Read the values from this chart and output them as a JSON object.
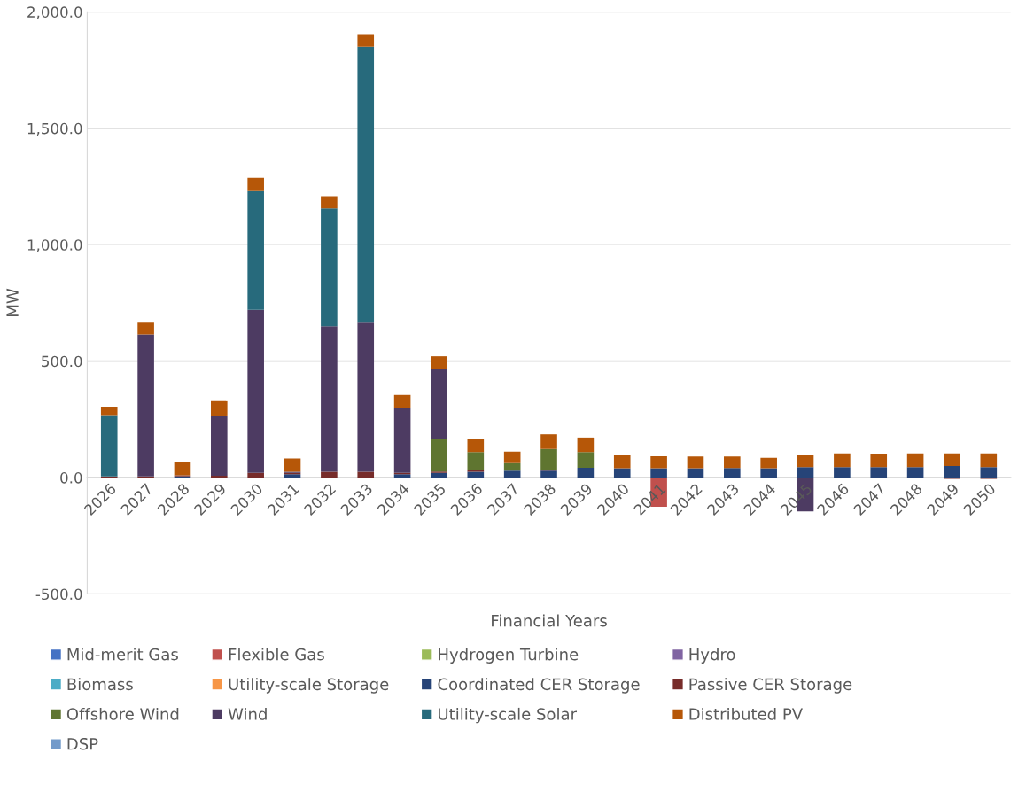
{
  "chart_data": {
    "type": "bar",
    "stacked": true,
    "xlabel": "Financial Years",
    "ylabel": "MW",
    "categories": [
      "2026",
      "2027",
      "2028",
      "2029",
      "2030",
      "2031",
      "2032",
      "2033",
      "2034",
      "2035",
      "2036",
      "2037",
      "2038",
      "2039",
      "2040",
      "2041",
      "2042",
      "2043",
      "2044",
      "2045",
      "2046",
      "2047",
      "2048",
      "2049",
      "2050"
    ],
    "ylim": [
      -500,
      2000
    ],
    "yticks": [
      {
        "value": -500,
        "label": "-500.0"
      },
      {
        "value": 0,
        "label": "0.0"
      },
      {
        "value": 500,
        "label": "500.0"
      },
      {
        "value": 1000,
        "label": "1,000.0"
      },
      {
        "value": 1500,
        "label": "1,500.0"
      },
      {
        "value": 2000,
        "label": "2,000.0"
      }
    ],
    "grid": "y",
    "legend": "bottom",
    "series": [
      {
        "name": "Mid-merit Gas",
        "color": "#4472c4",
        "values": [
          0,
          0,
          0,
          0,
          0,
          0,
          0,
          0,
          0,
          0,
          0,
          0,
          0,
          0,
          0,
          0,
          0,
          0,
          0,
          0,
          0,
          0,
          0,
          0,
          0
        ]
      },
      {
        "name": "Flexible Gas",
        "color": "#c0504d",
        "values": [
          0,
          0,
          0,
          0,
          0,
          0,
          0,
          0,
          0,
          0,
          0,
          0,
          0,
          0,
          0,
          -125,
          0,
          0,
          0,
          0,
          0,
          0,
          0,
          0,
          0
        ]
      },
      {
        "name": "Hydrogen Turbine",
        "color": "#9bbb59",
        "values": [
          0,
          0,
          0,
          0,
          0,
          0,
          0,
          0,
          0,
          0,
          0,
          0,
          0,
          0,
          0,
          0,
          0,
          0,
          0,
          0,
          0,
          0,
          0,
          0,
          0
        ]
      },
      {
        "name": "Hydro",
        "color": "#8064a2",
        "values": [
          0,
          0,
          0,
          0,
          0,
          0,
          0,
          0,
          0,
          0,
          0,
          0,
          0,
          0,
          0,
          0,
          0,
          0,
          0,
          0,
          0,
          0,
          0,
          0,
          0
        ]
      },
      {
        "name": "Biomass",
        "color": "#4bacc6",
        "values": [
          0,
          0,
          0,
          0,
          0,
          0,
          0,
          0,
          0,
          0,
          0,
          0,
          0,
          0,
          0,
          0,
          0,
          0,
          0,
          0,
          0,
          0,
          0,
          0,
          0
        ]
      },
      {
        "name": "Utility-scale Storage",
        "color": "#f79646",
        "values": [
          0,
          0,
          0,
          0,
          0,
          0,
          0,
          0,
          0,
          0,
          0,
          0,
          0,
          0,
          0,
          0,
          0,
          0,
          0,
          0,
          0,
          0,
          0,
          0,
          0
        ]
      },
      {
        "name": "Coordinated CER Storage",
        "color": "#264478",
        "values": [
          0,
          0,
          5,
          0,
          0,
          15,
          0,
          0,
          15,
          20,
          25,
          30,
          30,
          42,
          40,
          40,
          40,
          41,
          40,
          45,
          45,
          45,
          45,
          50,
          45
        ]
      },
      {
        "name": "Passive CER Storage",
        "color": "#772c2a",
        "values": [
          5,
          5,
          5,
          8,
          20,
          5,
          25,
          25,
          5,
          6,
          10,
          0,
          5,
          0,
          0,
          0,
          0,
          0,
          0,
          0,
          0,
          0,
          0,
          -5,
          -5
        ]
      },
      {
        "name": "Offshore Wind",
        "color": "#5f7530",
        "values": [
          0,
          0,
          0,
          0,
          0,
          0,
          0,
          0,
          0,
          140,
          75,
          32,
          88,
          68,
          0,
          0,
          0,
          0,
          0,
          0,
          0,
          0,
          0,
          0,
          0
        ]
      },
      {
        "name": "Wind",
        "color": "#4d3b62",
        "values": [
          0,
          610,
          0,
          255,
          700,
          5,
          625,
          640,
          280,
          300,
          0,
          0,
          0,
          0,
          0,
          0,
          0,
          0,
          0,
          -145,
          0,
          0,
          0,
          0,
          0
        ]
      },
      {
        "name": "Utility-scale Solar",
        "color": "#276a7c",
        "values": [
          260,
          0,
          0,
          0,
          510,
          0,
          506,
          1185,
          0,
          0,
          0,
          0,
          0,
          0,
          0,
          0,
          0,
          0,
          0,
          0,
          0,
          0,
          0,
          0,
          0
        ]
      },
      {
        "name": "Distributed PV",
        "color": "#b65708",
        "values": [
          40,
          50,
          58,
          65,
          57,
          57,
          52,
          55,
          55,
          55,
          57,
          50,
          63,
          62,
          55,
          52,
          51,
          50,
          45,
          50,
          59,
          55,
          59,
          54,
          59
        ]
      },
      {
        "name": "DSP",
        "color": "#729aca",
        "values": [
          0,
          0,
          0,
          0,
          0,
          0,
          0,
          0,
          0,
          0,
          0,
          0,
          0,
          0,
          0,
          0,
          0,
          0,
          0,
          0,
          0,
          0,
          0,
          0,
          0
        ]
      }
    ]
  }
}
